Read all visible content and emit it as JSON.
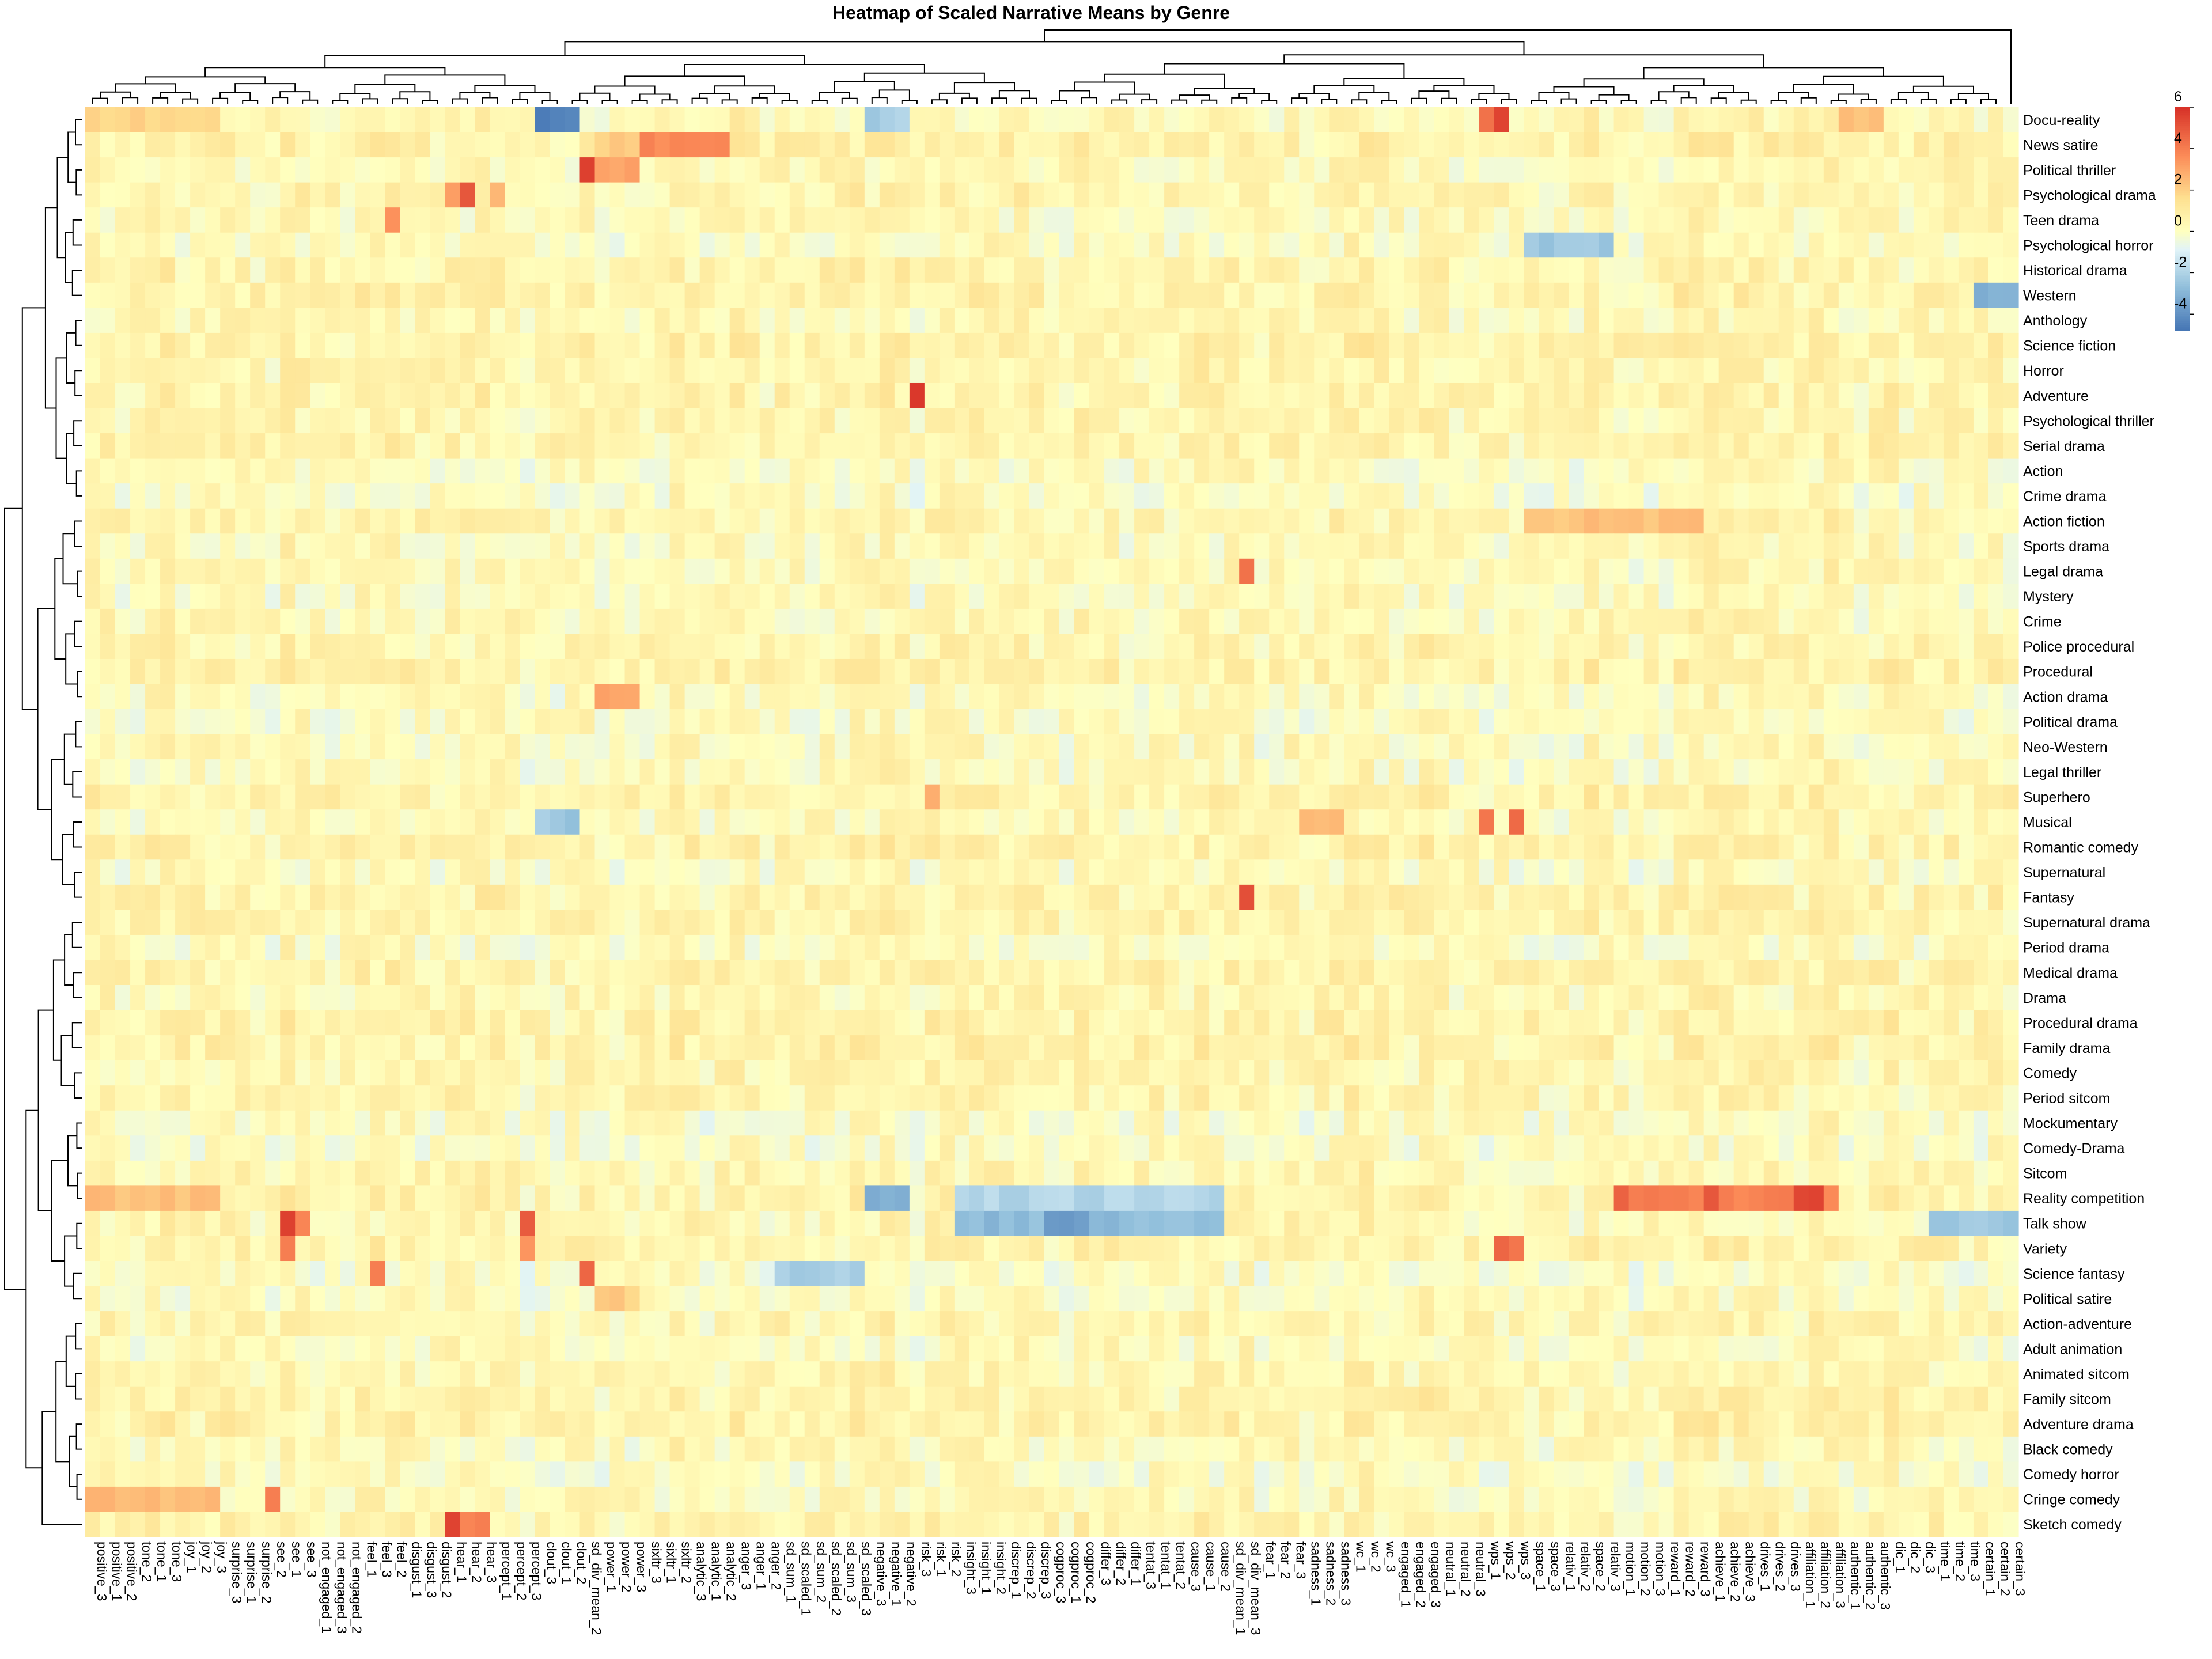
{
  "chart_data": {
    "type": "heatmap",
    "title": "Heatmap of Scaled Narrative Means by Genre",
    "rows": [
      "Docu-reality",
      "News satire",
      "Political thriller",
      "Psychological drama",
      "Teen drama",
      "Psychological horror",
      "Historical drama",
      "Western",
      "Anthology",
      "Science fiction",
      "Horror",
      "Adventure",
      "Psychological thriller",
      "Serial drama",
      "Action",
      "Crime drama",
      "Action fiction",
      "Sports drama",
      "Legal drama",
      "Mystery",
      "Crime",
      "Police procedural",
      "Procedural",
      "Action drama",
      "Political drama",
      "Neo-Western",
      "Legal thriller",
      "Superhero",
      "Musical",
      "Romantic comedy",
      "Supernatural",
      "Fantasy",
      "Supernatural drama",
      "Period drama",
      "Medical drama",
      "Drama",
      "Procedural drama",
      "Family drama",
      "Comedy",
      "Period sitcom",
      "Mockumentary",
      "Comedy-Drama",
      "Sitcom",
      "Reality competition",
      "Talk show",
      "Variety",
      "Science fantasy",
      "Political satire",
      "Action-adventure",
      "Adult animation",
      "Animated sitcom",
      "Family sitcom",
      "Adventure drama",
      "Black comedy",
      "Comedy horror",
      "Cringe comedy",
      "Sketch comedy"
    ],
    "columns": [
      "positive_3",
      "positive_1",
      "positive_2",
      "tone_2",
      "tone_1",
      "tone_3",
      "joy_1",
      "joy_2",
      "joy_3",
      "surprise_3",
      "surprise_1",
      "surprise_2",
      "see_2",
      "see_1",
      "see_3",
      "not_engaged_1",
      "not_engaged_3",
      "not_engaged_2",
      "feel_1",
      "feel_3",
      "feel_2",
      "disgust_1",
      "disgust_3",
      "disgust_2",
      "hear_1",
      "hear_2",
      "hear_3",
      "percept_1",
      "percept_2",
      "percept_3",
      "clout_3",
      "clout_1",
      "clout_2",
      "sd_div_mean_2",
      "power_1",
      "power_2",
      "power_3",
      "sixltr_3",
      "sixltr_1",
      "sixltr_2",
      "analytic_3",
      "analytic_1",
      "analytic_2",
      "anger_3",
      "anger_1",
      "anger_2",
      "sd_sum_1",
      "sd_scaled_1",
      "sd_sum_2",
      "sd_scaled_2",
      "sd_sum_3",
      "sd_scaled_3",
      "negative_3",
      "negative_1",
      "negative_2",
      "risk_3",
      "risk_1",
      "risk_2",
      "insight_3",
      "insight_1",
      "insight_2",
      "discrep_1",
      "discrep_2",
      "discrep_3",
      "cogproc_3",
      "cogproc_1",
      "cogproc_2",
      "differ_3",
      "differ_2",
      "differ_1",
      "tentat_3",
      "tentat_1",
      "tentat_2",
      "cause_3",
      "cause_1",
      "cause_2",
      "sd_div_mean_1",
      "sd_div_mean_3",
      "fear_1",
      "fear_2",
      "fear_3",
      "sadness_1",
      "sadness_2",
      "sadness_3",
      "wc_1",
      "wc_2",
      "wc_3",
      "engaged_1",
      "engaged_2",
      "engaged_3",
      "neutral_1",
      "neutral_2",
      "neutral_3",
      "wps_1",
      "wps_2",
      "wps_3",
      "space_1",
      "space_3",
      "relativ_1",
      "relativ_2",
      "space_2",
      "relativ_3",
      "motion_1",
      "motion_2",
      "motion_3",
      "reward_1",
      "reward_2",
      "reward_3",
      "achieve_1",
      "achieve_2",
      "achieve_3",
      "drives_1",
      "drives_2",
      "drives_3",
      "affiliation_1",
      "affiliation_2",
      "affiliation_3",
      "authentic_1",
      "authentic_2",
      "authentic_3",
      "dic_1",
      "dic_2",
      "dic_3",
      "time_1",
      "time_2",
      "time_3",
      "certain_1",
      "certain_2",
      "certain_3"
    ],
    "legend": {
      "ticks": [
        6,
        4,
        2,
        0,
        -2,
        -4
      ],
      "range": [
        -4.8,
        6
      ],
      "position": "top-right",
      "colors": [
        "#4575b4",
        "#91bfdb",
        "#e0f3f8",
        "#ffffbf",
        "#fee090",
        "#fc8d59",
        "#d73027"
      ]
    },
    "row_dendrogram": true,
    "col_dendrogram": true,
    "grid": false
  }
}
